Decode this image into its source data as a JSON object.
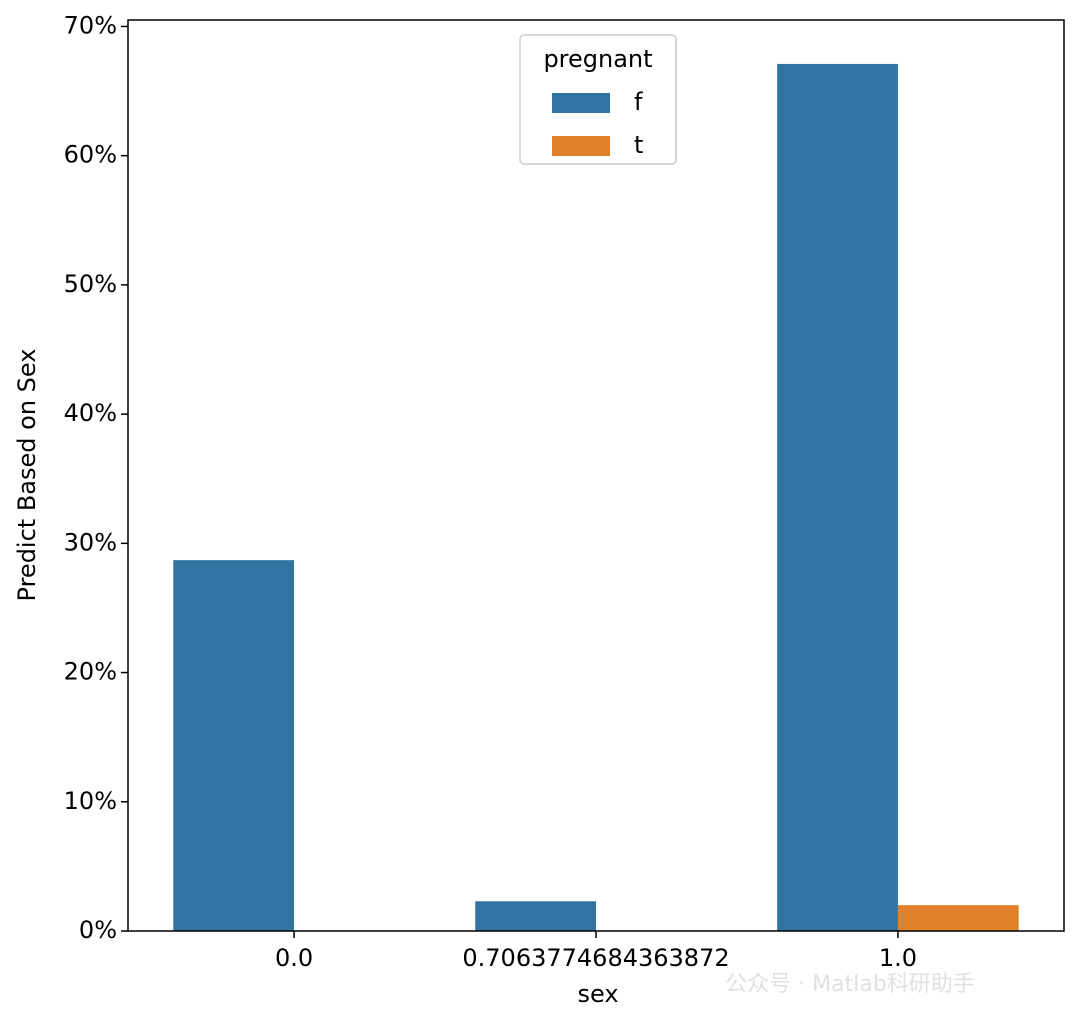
{
  "chart_data": {
    "type": "bar",
    "x_label": "sex",
    "y_label": "Predict Based on Sex",
    "categories": [
      "0.0",
      "0.7063774684363872",
      "1.0"
    ],
    "series": [
      {
        "name": "f",
        "color": "#3274a1",
        "values": [
          28.7,
          2.3,
          67.1
        ]
      },
      {
        "name": "t",
        "color": "#e1812c",
        "values": [
          null,
          null,
          2.0
        ]
      }
    ],
    "legend_title": "pregnant",
    "legend_position": "upper center",
    "ylim": [
      0,
      70.5
    ],
    "yticks": [
      {
        "value": 0,
        "label": "0%"
      },
      {
        "value": 10,
        "label": "10%"
      },
      {
        "value": 20,
        "label": "20%"
      },
      {
        "value": 30,
        "label": "30%"
      },
      {
        "value": 40,
        "label": "40%"
      },
      {
        "value": 50,
        "label": "50%"
      },
      {
        "value": 60,
        "label": "60%"
      },
      {
        "value": 70,
        "label": "70%"
      }
    ],
    "grid": false,
    "watermark": "公众号 · Matlab科研助手"
  }
}
